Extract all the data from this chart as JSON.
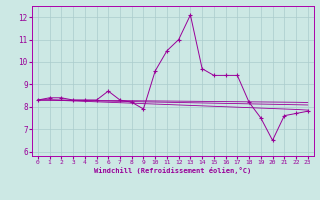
{
  "xlabel": "Windchill (Refroidissement éolien,°C)",
  "background_color": "#cce8e4",
  "grid_color": "#aacccc",
  "line_color": "#990099",
  "spine_color": "#aa00aa",
  "x_data": [
    0,
    1,
    2,
    3,
    4,
    5,
    6,
    7,
    8,
    9,
    10,
    11,
    12,
    13,
    14,
    15,
    16,
    17,
    18,
    19,
    20,
    21,
    22,
    23
  ],
  "y_main": [
    8.3,
    8.4,
    8.4,
    8.3,
    8.3,
    8.3,
    8.7,
    8.3,
    8.2,
    7.9,
    9.6,
    10.5,
    11.0,
    12.1,
    9.7,
    9.4,
    9.4,
    9.4,
    8.2,
    7.5,
    6.5,
    7.6,
    7.7,
    7.8
  ],
  "y_trend1": [
    8.3,
    8.3,
    8.28,
    8.26,
    8.24,
    8.22,
    8.2,
    8.18,
    8.16,
    8.14,
    8.12,
    8.1,
    8.08,
    8.06,
    8.04,
    8.02,
    8.0,
    7.98,
    7.96,
    7.94,
    7.92,
    7.9,
    7.88,
    7.85
  ],
  "y_trend2": [
    8.3,
    8.3,
    8.29,
    8.28,
    8.27,
    8.26,
    8.25,
    8.24,
    8.23,
    8.22,
    8.21,
    8.2,
    8.19,
    8.18,
    8.17,
    8.16,
    8.15,
    8.14,
    8.13,
    8.12,
    8.11,
    8.1,
    8.09,
    8.08
  ],
  "y_trend3": [
    8.3,
    8.3,
    8.3,
    8.295,
    8.29,
    8.285,
    8.28,
    8.275,
    8.27,
    8.265,
    8.26,
    8.255,
    8.25,
    8.245,
    8.24,
    8.235,
    8.23,
    8.225,
    8.22,
    8.215,
    8.21,
    8.205,
    8.2,
    8.19
  ],
  "ylim": [
    5.8,
    12.5
  ],
  "yticks": [
    6,
    7,
    8,
    9,
    10,
    11,
    12
  ],
  "xlim": [
    -0.5,
    23.5
  ],
  "xticks": [
    0,
    1,
    2,
    3,
    4,
    5,
    6,
    7,
    8,
    9,
    10,
    11,
    12,
    13,
    14,
    15,
    16,
    17,
    18,
    19,
    20,
    21,
    22,
    23
  ]
}
